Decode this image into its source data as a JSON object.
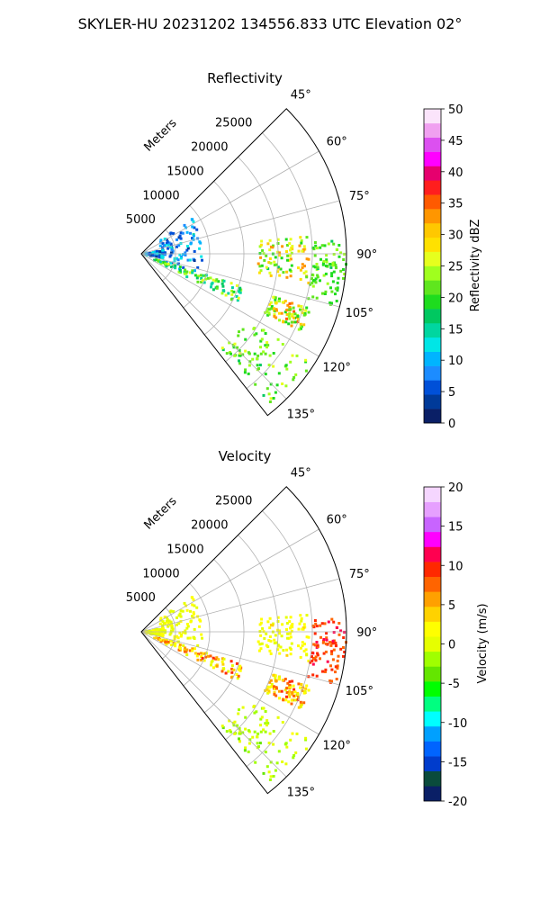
{
  "suptitle": "SKYLER-HU  20231202  134556.833 UTC Elevation 02°",
  "colors": {
    "reflectivity_scale": [
      "#0a1f66",
      "#003a99",
      "#0050d8",
      "#1c8cff",
      "#00b4ff",
      "#00e6e6",
      "#00d6a0",
      "#00c860",
      "#1edc1e",
      "#5fe61e",
      "#a0ff1e",
      "#e6ff1e",
      "#ffe100",
      "#ffc800",
      "#ff9600",
      "#ff5a00",
      "#ff1e1e",
      "#e6006e",
      "#ff00ff",
      "#dc50f0",
      "#f0a0f0",
      "#fbe4fb"
    ],
    "velocity_scale": [
      "#0a1f66",
      "#0a4b3c",
      "#003ccc",
      "#0064ff",
      "#00a0ff",
      "#00ffff",
      "#00ff80",
      "#00ff00",
      "#64e600",
      "#a0ff00",
      "#e6ff00",
      "#ffff00",
      "#ffd200",
      "#ffa000",
      "#ff6400",
      "#ff2800",
      "#ff0050",
      "#ff00ff",
      "#c864ff",
      "#e6a0ff",
      "#f5d6ff"
    ]
  },
  "chart_data": [
    {
      "type": "heatmap",
      "subtype": "polar-ppi-sector",
      "title": "Reflectivity",
      "radial_label": "Meters",
      "range_ticks_m": [
        5000,
        10000,
        15000,
        20000,
        25000
      ],
      "range_max_m": 30000,
      "azimuth_min_deg": 45,
      "azimuth_max_deg": 142,
      "azimuth_tick_labels": [
        "45°",
        "60°",
        "75°",
        "90°",
        "105°",
        "120°",
        "135°"
      ],
      "azimuth_ticks_deg": [
        45,
        60,
        75,
        90,
        105,
        120,
        135
      ],
      "grid": true,
      "colorbar": {
        "label": "Reflectivity dBZ",
        "vmin": 0,
        "vmax": 50,
        "ticks": [
          0,
          5,
          10,
          15,
          20,
          25,
          30,
          35,
          40,
          45,
          50
        ]
      },
      "echo_regions": [
        {
          "feature": "near-radar clutter",
          "az": [
            80,
            103
          ],
          "range_km": [
            0.2,
            3.5
          ],
          "dbz": [
            3,
            14
          ]
        },
        {
          "feature": "scattered returns",
          "az": [
            55,
            112
          ],
          "range_km": [
            3,
            9
          ],
          "dbz": [
            4,
            14
          ]
        },
        {
          "feature": "long diagonal band",
          "az": [
            108,
            117
          ],
          "range_km": [
            2,
            16
          ],
          "dbz": [
            14,
            26
          ]
        },
        {
          "feature": "linear streak",
          "az": [
            84,
            100
          ],
          "range_km": [
            17,
            25
          ],
          "dbz": [
            18,
            34
          ]
        },
        {
          "feature": "outer edge band",
          "az": [
            86,
            105
          ],
          "range_km": [
            25,
            30
          ],
          "dbz": [
            18,
            24
          ]
        },
        {
          "feature": "mid cluster",
          "az": [
            108,
            116
          ],
          "range_km": [
            20,
            26
          ],
          "dbz": [
            18,
            36
          ]
        },
        {
          "feature": "southern echo mass",
          "az": [
            122,
            140
          ],
          "range_km": [
            18,
            30
          ],
          "dbz": [
            18,
            26
          ]
        }
      ]
    },
    {
      "type": "heatmap",
      "subtype": "polar-ppi-sector",
      "title": "Velocity",
      "radial_label": "Meters",
      "range_ticks_m": [
        5000,
        10000,
        15000,
        20000,
        25000
      ],
      "range_max_m": 30000,
      "azimuth_min_deg": 45,
      "azimuth_max_deg": 142,
      "azimuth_tick_labels": [
        "45°",
        "60°",
        "75°",
        "90°",
        "105°",
        "120°",
        "135°"
      ],
      "azimuth_ticks_deg": [
        45,
        60,
        75,
        90,
        105,
        120,
        135
      ],
      "grid": true,
      "colorbar": {
        "label": "Velocity (m/s)",
        "vmin": -20,
        "vmax": 20,
        "ticks": [
          -20,
          -15,
          -10,
          -5,
          0,
          5,
          10,
          15,
          20
        ]
      },
      "echo_regions": [
        {
          "feature": "near-radar clutter",
          "az": [
            80,
            103
          ],
          "range_km": [
            0.2,
            3.5
          ],
          "ms": [
            -1,
            2
          ]
        },
        {
          "feature": "scattered returns",
          "az": [
            55,
            112
          ],
          "range_km": [
            3,
            9
          ],
          "ms": [
            0,
            2
          ]
        },
        {
          "feature": "long diagonal band",
          "az": [
            108,
            117
          ],
          "range_km": [
            2,
            16
          ],
          "ms": [
            0,
            9
          ]
        },
        {
          "feature": "linear streak",
          "az": [
            84,
            100
          ],
          "range_km": [
            17,
            25
          ],
          "ms": [
            0,
            3
          ]
        },
        {
          "feature": "outer edge band",
          "az": [
            86,
            105
          ],
          "range_km": [
            25,
            30
          ],
          "ms": [
            7,
            11
          ]
        },
        {
          "feature": "mid cluster",
          "az": [
            108,
            116
          ],
          "range_km": [
            20,
            26
          ],
          "ms": [
            0,
            10
          ]
        },
        {
          "feature": "southern echo mass",
          "az": [
            122,
            140
          ],
          "range_km": [
            18,
            30
          ],
          "ms": [
            -3,
            1
          ]
        }
      ]
    }
  ]
}
